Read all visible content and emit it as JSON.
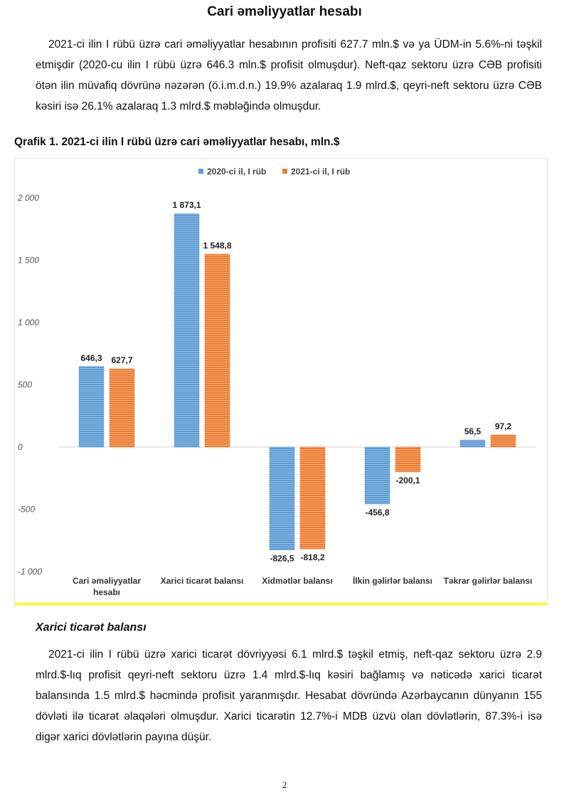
{
  "title": "Cari əməliyyatlar hesabı",
  "para1": "2021-ci ilin I rübü üzrə cari əməliyyatlar hesabının profisiti 627.7 mln.$ və ya ÜDM-in 5.6%-ni təşkil etmişdir (2020-cu ilin I rübü üzrə 646.3 mln.$ profisit olmuşdur). Neft-qaz sektoru üzrə CƏB profisiti ötən ilin müvafiq dövrünə nəzərən (ö.i.m.d.n.) 19.9% azalaraq 1.9 mlrd.$, qeyri-neft sektoru üzrə CƏB kəsiri isə 26.1% azalaraq 1.3 mlrd.$ məbləğində olmuşdur.",
  "caption": "Qrafik 1. 2021-ci ilin I rübü üzrə cari əməliyyatlar hesabı, mln.$",
  "chart_data": {
    "type": "bar",
    "categories": [
      "Cari əməliyyatlar hesabı",
      "Xarici ticarət balansı",
      "Xidmətlər balansı",
      "İlkin gəlirlər balansı",
      "Təkrar gəlirlər balansı"
    ],
    "series": [
      {
        "name": "2020-ci il, I rüb",
        "color": "#5b9bd5",
        "values": [
          646.3,
          1873.1,
          -826.5,
          -456.8,
          56.5
        ],
        "labels": [
          "646,3",
          "1 873,1",
          "-826,5",
          "-456,8",
          "56,5"
        ]
      },
      {
        "name": "2021-ci il, I rüb",
        "color": "#ed7d31",
        "values": [
          627.7,
          1548.8,
          -818.2,
          -200.1,
          97.2
        ],
        "labels": [
          "627,7",
          "1 548,8",
          "-818,2",
          "-200,1",
          "97,2"
        ]
      }
    ],
    "ylim": [
      -1000,
      2000
    ],
    "yticks": [
      2000,
      1500,
      1000,
      500,
      0,
      -500,
      -1000
    ],
    "ytick_labels": [
      "2 000",
      "1 500",
      "1 000",
      "500",
      "0",
      "-500",
      "-1 000"
    ],
    "legend": "top",
    "grid": false
  },
  "subheading": "Xarici ticarət balansı",
  "para2": "2021-ci ilin I rübü üzrə xarici ticarət dövriyyəsi 6.1 mlrd.$ təşkil etmiş, neft-qaz sektoru üzrə 2.9 mlrd.$-lıq profisit qeyri-neft sektoru üzrə 1.4 mlrd.$-lıq kəsiri bağlamış və nəticədə xarici ticarət balansında 1.5 mlrd.$ həcmində profisit yaranmışdır. Hesabat dövründə Azərbaycanın dünyanın 155 dövləti ilə ticarət əlaqələri olmuşdur. Xarici ticarətin 12.7%-i MDB üzvü olan dövlətlərin, 87.3%-i isə digər xarici dövlətlərin payına düşür.",
  "page_number": "2"
}
